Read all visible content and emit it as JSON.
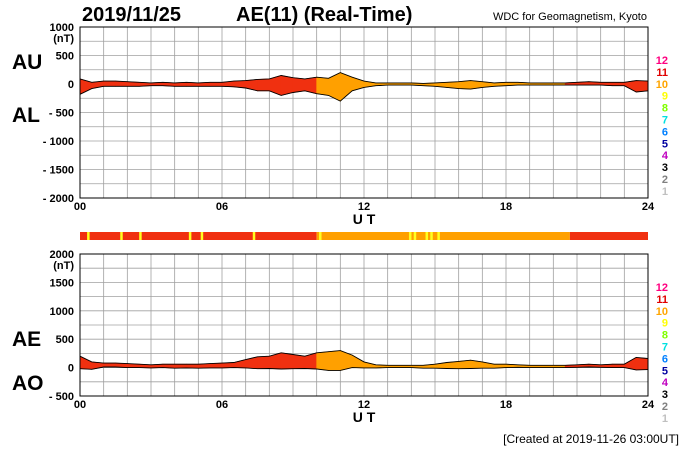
{
  "header": {
    "date": "2019/11/25",
    "title": "AE(11) (Real-Time)",
    "source": "WDC for Geomagnetism, Kyoto"
  },
  "footer": {
    "created": "[Created at 2019-11-26 03:00UT]"
  },
  "panel_labels": {
    "top_upper": "AU",
    "top_lower": "AL",
    "bottom_upper": "AE",
    "bottom_lower": "AO"
  },
  "station_legend": {
    "labels": [
      "12",
      "11",
      "10",
      "9",
      "8",
      "7",
      "6",
      "5",
      "4",
      "3",
      "2",
      "1"
    ],
    "colors": [
      "#ff0080",
      "#e00000",
      "#ffa500",
      "#ffff00",
      "#80ff00",
      "#00e0e0",
      "#0080ff",
      "#0000a0",
      "#c000c0",
      "#000000",
      "#808080",
      "#c0c0c0"
    ]
  },
  "colors": {
    "red": "#f03010",
    "orange": "#ffa000",
    "yellow": "#ffff20",
    "grid": "#a0a0a0"
  },
  "chart_data": [
    {
      "type": "area",
      "panel": "AU/AL",
      "ylabel": "(nT)",
      "xlabel": "U T",
      "ylim": [
        -2000,
        1000
      ],
      "yticks": [
        1000,
        500,
        0,
        -500,
        -1000,
        -1500,
        -2000
      ],
      "ytick_labels": [
        "1000",
        "500",
        "0",
        "- 500",
        "- 1000",
        "- 1500",
        "- 2000"
      ],
      "xlim": [
        0,
        24
      ],
      "xticks": [
        0,
        6,
        12,
        18,
        24
      ],
      "xtick_labels": [
        "00",
        "06",
        "12",
        "18",
        "24"
      ],
      "grid": true,
      "x": [
        0,
        0.5,
        1,
        1.5,
        2,
        2.5,
        3,
        3.5,
        4,
        4.5,
        5,
        5.5,
        6,
        6.5,
        7,
        7.5,
        8,
        8.5,
        9,
        9.5,
        10,
        10.5,
        11,
        11.5,
        12,
        12.5,
        13,
        13.5,
        14,
        14.5,
        15,
        15.5,
        16,
        16.5,
        17,
        17.5,
        18,
        18.5,
        19,
        19.5,
        20,
        20.5,
        21,
        21.5,
        22,
        22.5,
        23,
        23.5,
        24
      ],
      "series": [
        {
          "name": "AU",
          "values": [
            90,
            30,
            50,
            50,
            40,
            30,
            20,
            30,
            20,
            30,
            20,
            30,
            30,
            50,
            60,
            80,
            90,
            150,
            110,
            90,
            120,
            100,
            200,
            120,
            50,
            20,
            20,
            20,
            20,
            10,
            20,
            30,
            40,
            60,
            40,
            20,
            30,
            30,
            20,
            20,
            20,
            20,
            30,
            40,
            30,
            30,
            30,
            60,
            50
          ]
        },
        {
          "name": "AL",
          "values": [
            -180,
            -80,
            -40,
            -40,
            -40,
            -40,
            -30,
            -30,
            -40,
            -40,
            -40,
            -40,
            -40,
            -50,
            -70,
            -120,
            -120,
            -200,
            -150,
            -120,
            -170,
            -200,
            -300,
            -120,
            -60,
            -30,
            -20,
            -20,
            -20,
            -30,
            -40,
            -60,
            -80,
            -90,
            -60,
            -40,
            -30,
            -20,
            -20,
            -20,
            -20,
            -20,
            -20,
            -20,
            -20,
            -30,
            -30,
            -140,
            -120
          ]
        }
      ],
      "band_colors": [
        "red",
        "red",
        "red",
        "red",
        "red",
        "red",
        "red",
        "red",
        "red",
        "red",
        "red",
        "red",
        "red",
        "red",
        "red",
        "red",
        "red",
        "red",
        "red",
        "red",
        "orange",
        "orange",
        "orange",
        "orange",
        "orange",
        "orange",
        "orange",
        "orange",
        "orange",
        "orange",
        "orange",
        "orange",
        "orange",
        "orange",
        "orange",
        "orange",
        "orange",
        "orange",
        "orange",
        "orange",
        "orange",
        "red",
        "red",
        "red",
        "red",
        "red",
        "red",
        "red"
      ]
    },
    {
      "type": "area",
      "panel": "AE/AO",
      "ylabel": "(nT)",
      "xlabel": "U T",
      "ylim": [
        -500,
        2000
      ],
      "yticks": [
        2000,
        1500,
        1000,
        500,
        0,
        -500
      ],
      "ytick_labels": [
        "2000",
        "1500",
        "1000",
        "500",
        "0",
        "- 500"
      ],
      "xlim": [
        0,
        24
      ],
      "xticks": [
        0,
        6,
        12,
        18,
        24
      ],
      "xtick_labels": [
        "00",
        "06",
        "12",
        "18",
        "24"
      ],
      "grid": true,
      "x": [
        0,
        0.5,
        1,
        1.5,
        2,
        2.5,
        3,
        3.5,
        4,
        4.5,
        5,
        5.5,
        6,
        6.5,
        7,
        7.5,
        8,
        8.5,
        9,
        9.5,
        10,
        10.5,
        11,
        11.5,
        12,
        12.5,
        13,
        13.5,
        14,
        14.5,
        15,
        15.5,
        16,
        16.5,
        17,
        17.5,
        18,
        18.5,
        19,
        19.5,
        20,
        20.5,
        21,
        21.5,
        22,
        22.5,
        23,
        23.5,
        24
      ],
      "series": [
        {
          "name": "AE",
          "values": [
            200,
            100,
            80,
            80,
            70,
            60,
            50,
            60,
            60,
            60,
            60,
            70,
            80,
            90,
            140,
            190,
            200,
            260,
            230,
            200,
            260,
            280,
            300,
            220,
            100,
            50,
            40,
            40,
            40,
            40,
            60,
            90,
            110,
            130,
            100,
            60,
            60,
            50,
            40,
            40,
            40,
            40,
            50,
            60,
            50,
            60,
            60,
            180,
            160
          ]
        },
        {
          "name": "AO",
          "values": [
            -20,
            -30,
            10,
            10,
            0,
            0,
            -5,
            0,
            -10,
            -5,
            -10,
            -5,
            -5,
            0,
            -5,
            -20,
            -15,
            -25,
            -20,
            -15,
            -25,
            -50,
            -50,
            0,
            -5,
            -5,
            0,
            0,
            0,
            -10,
            -10,
            -15,
            -20,
            -15,
            -10,
            -10,
            0,
            5,
            0,
            0,
            0,
            0,
            5,
            10,
            5,
            0,
            0,
            -40,
            -35
          ]
        }
      ],
      "band_colors": [
        "red",
        "red",
        "red",
        "red",
        "red",
        "red",
        "red",
        "red",
        "red",
        "red",
        "red",
        "red",
        "red",
        "red",
        "red",
        "red",
        "red",
        "red",
        "red",
        "red",
        "orange",
        "orange",
        "orange",
        "orange",
        "orange",
        "orange",
        "orange",
        "orange",
        "orange",
        "orange",
        "orange",
        "orange",
        "orange",
        "orange",
        "orange",
        "orange",
        "orange",
        "orange",
        "orange",
        "orange",
        "orange",
        "red",
        "red",
        "red",
        "red",
        "red",
        "red",
        "red"
      ]
    }
  ],
  "station_strip": {
    "segments": [
      {
        "from": 0,
        "to": 10,
        "color": "red"
      },
      {
        "from": 10,
        "to": 20.7,
        "color": "orange"
      },
      {
        "from": 20.7,
        "to": 24,
        "color": "red"
      }
    ],
    "highlights": [
      0.3,
      1.7,
      2.5,
      4.6,
      5.1,
      7.3,
      10.1,
      13.9,
      14.1,
      14.6,
      14.8,
      15.1
    ]
  }
}
